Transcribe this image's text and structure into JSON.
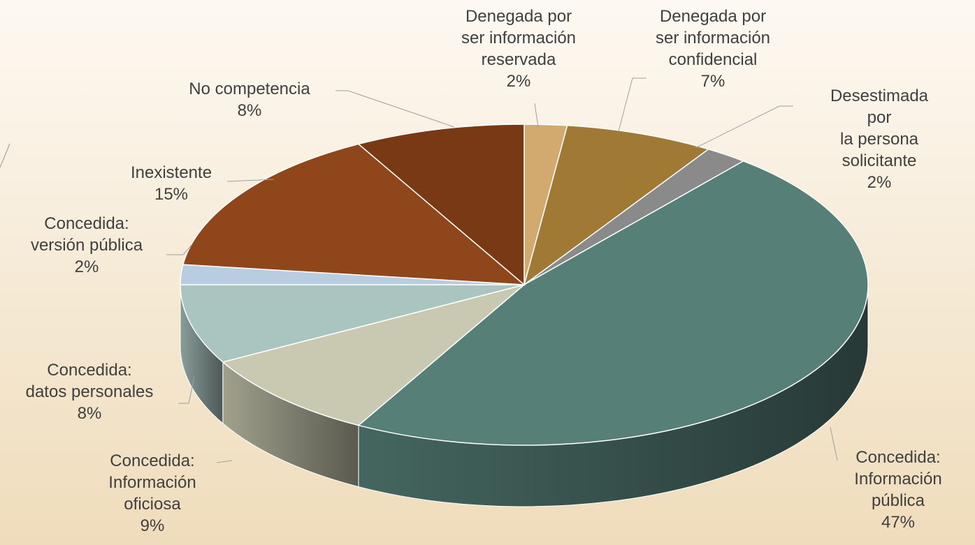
{
  "chart_data": {
    "type": "pie3d",
    "categories": [
      "Denegada por\nser información\nreservada",
      "Denegada por\nser información\nconfidencial",
      "Desestimada por\nla persona\nsolicitante",
      "Concedida:\nInformación\npública",
      "Concedida:\nInformación\noficiosa",
      "Concedida:\ndatos personales",
      "Concedida:\nversión pública",
      "Inexistente",
      "No competencia"
    ],
    "values": [
      2,
      7,
      2,
      47,
      9,
      8,
      2,
      15,
      8
    ],
    "value_labels": [
      "2%",
      "7%",
      "2%",
      "47%",
      "9%",
      "8%",
      "2%",
      "15%",
      "8%"
    ],
    "colors": [
      "#d2aa70",
      "#a07a34",
      "#8a8a8a",
      "#567f78",
      "#c8c9b0",
      "#aac4bf",
      "#b9cde0",
      "#8f461a",
      "#7a3915"
    ]
  }
}
